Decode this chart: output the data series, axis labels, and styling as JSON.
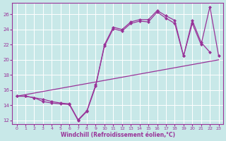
{
  "xlabel": "Windchill (Refroidissement éolien,°C)",
  "background_color": "#c8e8e8",
  "grid_color": "#ffffff",
  "line_color": "#993399",
  "xlim": [
    -0.5,
    23.5
  ],
  "ylim": [
    11.5,
    27.5
  ],
  "xticks": [
    0,
    1,
    2,
    3,
    4,
    5,
    6,
    7,
    8,
    9,
    10,
    11,
    12,
    13,
    14,
    15,
    16,
    17,
    18,
    19,
    20,
    21,
    22,
    23
  ],
  "yticks": [
    12,
    14,
    16,
    18,
    20,
    22,
    24,
    26
  ],
  "series1_x": [
    0,
    1,
    2,
    3,
    4,
    5,
    6,
    7,
    8,
    9,
    10,
    11,
    12,
    13,
    14,
    15,
    16,
    17,
    18,
    19,
    20,
    21,
    22
  ],
  "series1_y": [
    15.2,
    15.2,
    15.0,
    14.5,
    14.3,
    14.2,
    14.1,
    12.0,
    13.2,
    16.5,
    22.0,
    24.3,
    24.0,
    25.0,
    25.3,
    25.3,
    26.5,
    25.8,
    25.2,
    20.5,
    25.2,
    22.3,
    21.0
  ],
  "series2_x": [
    0,
    1,
    2,
    3,
    4,
    5,
    6,
    7,
    8,
    9,
    10,
    11,
    12,
    13,
    14,
    15,
    16,
    17,
    18,
    19,
    20,
    21,
    22,
    23
  ],
  "series2_y": [
    15.2,
    15.2,
    15.0,
    14.8,
    14.5,
    14.3,
    14.2,
    12.1,
    13.3,
    16.7,
    21.8,
    24.1,
    23.8,
    24.8,
    25.1,
    25.0,
    26.3,
    25.5,
    24.8,
    20.5,
    24.8,
    22.0,
    27.0,
    20.5
  ],
  "series3_x": [
    0,
    23
  ],
  "series3_y": [
    15.2,
    20.0
  ],
  "lw": 0.9,
  "marker_size": 2.5
}
